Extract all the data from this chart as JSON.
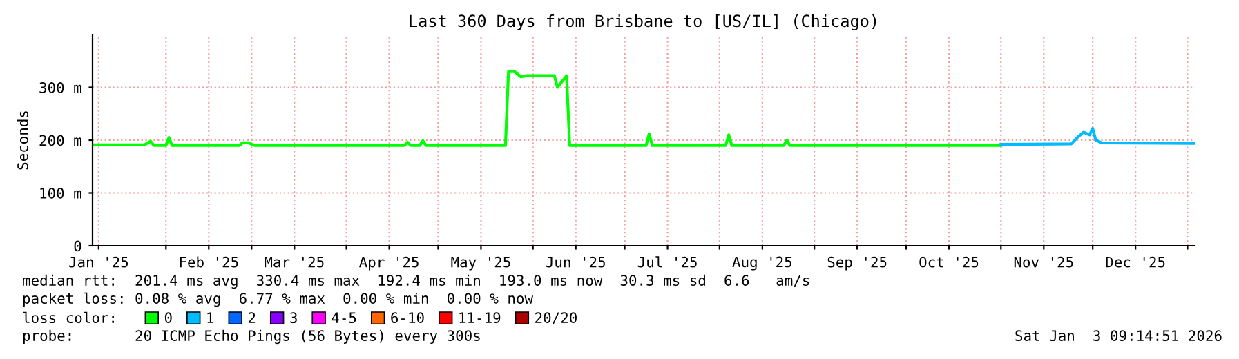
{
  "chart_data": {
    "type": "line",
    "title": "Last 360 Days from Brisbane to [US/IL] (Chicago)",
    "ylabel": "Seconds",
    "legend_title": "loss color:",
    "annotations": [
      "median rtt:  201.4 ms avg  330.4 ms max  192.4 ms min  193.0 ms now  30.3 ms sd  6.6   am/s",
      "packet loss: 0.08 % avg  6.77 % max  0.00 % min  0.00 % now",
      "probe:       20 ICMP Echo Pings (56 Bytes) every 300s",
      "Sat Jan  3 09:14:51 2026"
    ],
    "xlim": [
      "2025-01-08",
      "2026-01-03T09:14"
    ],
    "ylim": [
      0,
      400
    ],
    "xticks": [
      {
        "value": "2025-01-10",
        "label": "Jan '25"
      },
      {
        "value": "2025-02-01",
        "label": null
      },
      {
        "value": "2025-02-15",
        "label": "Feb '25"
      },
      {
        "value": "2025-03-01",
        "label": null
      },
      {
        "value": "2025-03-15",
        "label": "Mar '25"
      },
      {
        "value": "2025-04-01",
        "label": null
      },
      {
        "value": "2025-04-15",
        "label": "Apr '25"
      },
      {
        "value": "2025-05-01",
        "label": null
      },
      {
        "value": "2025-05-15",
        "label": "May '25"
      },
      {
        "value": "2025-06-01",
        "label": null
      },
      {
        "value": "2025-06-15",
        "label": "Jun '25"
      },
      {
        "value": "2025-07-01",
        "label": null
      },
      {
        "value": "2025-07-15",
        "label": "Jul '25"
      },
      {
        "value": "2025-08-01",
        "label": null
      },
      {
        "value": "2025-08-15",
        "label": "Aug '25"
      },
      {
        "value": "2025-09-01",
        "label": null
      },
      {
        "value": "2025-09-15",
        "label": "Sep '25"
      },
      {
        "value": "2025-10-01",
        "label": null
      },
      {
        "value": "2025-10-15",
        "label": "Oct '25"
      },
      {
        "value": "2025-11-01",
        "label": null
      },
      {
        "value": "2025-11-15",
        "label": "Nov '25"
      },
      {
        "value": "2025-12-01",
        "label": null
      },
      {
        "value": "2025-12-15",
        "label": "Dec '25"
      },
      {
        "value": "2026-01-01",
        "label": null
      }
    ],
    "yticks": [
      0,
      {
        "value": 100,
        "label": "100 m"
      },
      {
        "value": 200,
        "label": "200 m"
      },
      {
        "value": 300,
        "label": "300 m"
      }
    ],
    "grid": true,
    "legend": "bottom",
    "marker": "none",
    "line_style": "solid",
    "series": [
      {
        "name": "0",
        "color": "#00ff00",
        "x": [
          "2025-01-08",
          "2025-01-25",
          "2025-01-27",
          "2025-01-28",
          "2025-02-01",
          "2025-02-02",
          "2025-02-03",
          "2025-02-25",
          "2025-02-26",
          "2025-02-28",
          "2025-03-02",
          "2025-03-06",
          "2025-04-20",
          "2025-04-21",
          "2025-04-22",
          "2025-04-25",
          "2025-04-26",
          "2025-04-27",
          "2025-05-23",
          "2025-05-24",
          "2025-05-26",
          "2025-05-28",
          "2025-05-30",
          "2025-06-08",
          "2025-06-09",
          "2025-06-12",
          "2025-06-13",
          "2025-07-08",
          "2025-07-09",
          "2025-07-10",
          "2025-08-03",
          "2025-08-04",
          "2025-08-05",
          "2025-08-22",
          "2025-08-23",
          "2025-08-24",
          "2025-09-20",
          "2025-10-10",
          "2025-10-28",
          "2025-11-01"
        ],
        "values": [
          191,
          191,
          198,
          190,
          190,
          205,
          190,
          190,
          195,
          195,
          190,
          190,
          190,
          196,
          190,
          190,
          199,
          190,
          190,
          330,
          330,
          320,
          322,
          322,
          300,
          322,
          190,
          190,
          212,
          190,
          190,
          210,
          190,
          190,
          200,
          190,
          190,
          190,
          190,
          190
        ]
      },
      {
        "name": "1",
        "color": "#00bbff",
        "x": [
          "2025-11-01",
          "2025-11-24",
          "2025-11-26",
          "2025-11-28",
          "2025-11-30",
          "2025-12-01",
          "2025-12-02",
          "2025-12-04",
          "2026-01-03"
        ],
        "values": [
          192,
          193,
          205,
          215,
          210,
          222,
          200,
          195,
          194
        ]
      },
      {
        "name": "2",
        "color": "#0066ff"
      },
      {
        "name": "3",
        "color": "#8800ff"
      },
      {
        "name": "4-5",
        "color": "#ff00ff"
      },
      {
        "name": "6-10",
        "color": "#ff6600"
      },
      {
        "name": "11-19",
        "color": "#ff0000"
      },
      {
        "name": "20/20",
        "color": "#aa0000"
      }
    ]
  }
}
